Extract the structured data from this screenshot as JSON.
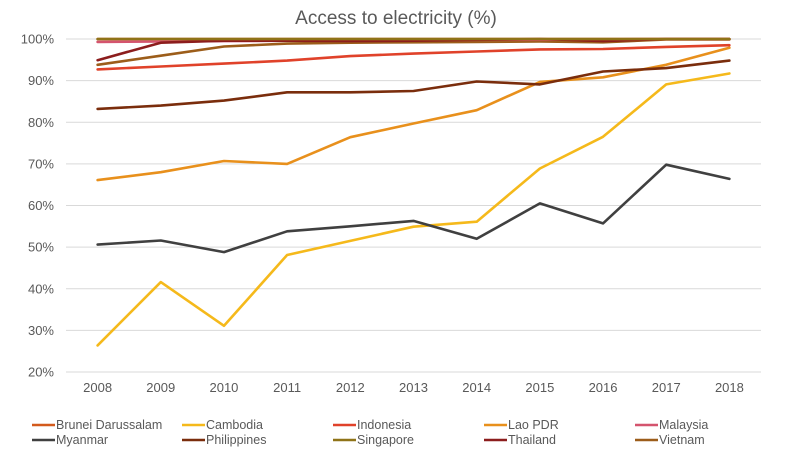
{
  "chart_data": {
    "type": "line",
    "title": "Access to electricity (%)",
    "xlabel": "",
    "ylabel": "",
    "x": [
      2008,
      2009,
      2010,
      2011,
      2012,
      2013,
      2014,
      2015,
      2016,
      2017,
      2018
    ],
    "ylim": [
      20,
      100
    ],
    "yticks": [
      20,
      30,
      40,
      50,
      60,
      70,
      80,
      90,
      100
    ],
    "y_tick_format": "%",
    "grid": true,
    "legend_position": "bottom",
    "series": [
      {
        "name": "Brunei Darussalam",
        "color": "#d35a1c",
        "values": [
          100,
          100,
          100,
          100,
          100,
          100,
          100,
          100,
          100,
          100,
          100
        ]
      },
      {
        "name": "Cambodia",
        "color": "#f5b91b",
        "values": [
          26.4,
          41.6,
          31.1,
          48.1,
          51.5,
          54.9,
          56.1,
          68.9,
          76.5,
          89.1,
          91.7
        ]
      },
      {
        "name": "Indonesia",
        "color": "#e0422a",
        "values": [
          92.7,
          93.4,
          94.1,
          94.8,
          95.9,
          96.5,
          97.0,
          97.5,
          97.6,
          98.1,
          98.5
        ]
      },
      {
        "name": "Lao PDR",
        "color": "#e8901c",
        "values": [
          66.1,
          68.0,
          70.7,
          70.0,
          76.4,
          79.7,
          82.9,
          89.7,
          90.8,
          93.8,
          97.9
        ]
      },
      {
        "name": "Malaysia",
        "color": "#d4546e",
        "values": [
          99.3,
          99.4,
          99.5,
          99.6,
          99.6,
          99.7,
          99.8,
          99.8,
          99.9,
          100,
          100
        ]
      },
      {
        "name": "Myanmar",
        "color": "#404040",
        "values": [
          50.6,
          51.6,
          48.8,
          53.8,
          55.0,
          56.3,
          52.0,
          60.5,
          55.7,
          69.8,
          66.4
        ]
      },
      {
        "name": "Philippines",
        "color": "#7a2d0c",
        "values": [
          83.2,
          84.0,
          85.2,
          87.2,
          87.2,
          87.5,
          89.8,
          89.1,
          92.2,
          93.0,
          94.8
        ]
      },
      {
        "name": "Singapore",
        "color": "#8f7318",
        "values": [
          100,
          100,
          100,
          100,
          100,
          100,
          100,
          100,
          100,
          100,
          100
        ]
      },
      {
        "name": "Thailand",
        "color": "#8c1d1d",
        "values": [
          94.9,
          99.1,
          99.6,
          99.6,
          99.5,
          99.6,
          99.8,
          100,
          99.5,
          100,
          100
        ]
      },
      {
        "name": "Vietnam",
        "color": "#9c5d1a",
        "values": [
          93.8,
          96.0,
          98.2,
          98.9,
          99.1,
          99.2,
          99.3,
          99.4,
          99.2,
          99.9,
          99.9
        ]
      }
    ]
  }
}
